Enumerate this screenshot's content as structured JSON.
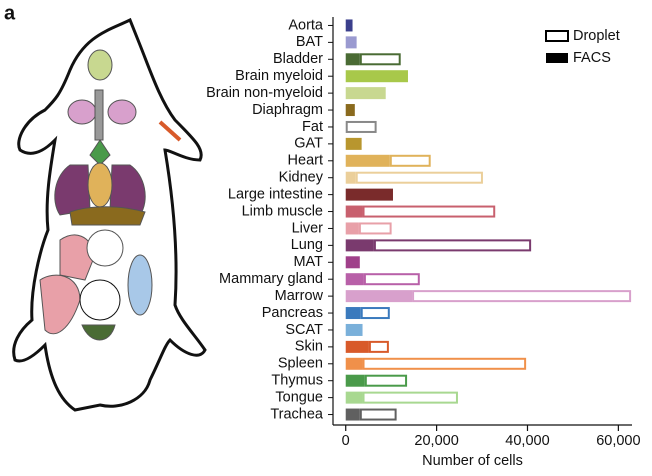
{
  "chart_data": {
    "type": "bar",
    "orientation": "horizontal",
    "stacked": true,
    "panel_label": "a",
    "xlabel": "Number of cells",
    "categories": [
      "Aorta",
      "BAT",
      "Bladder",
      "Brain myeloid",
      "Brain non-myeloid",
      "Diaphragm",
      "Fat",
      "GAT",
      "Heart",
      "Kidney",
      "Large intestine",
      "Limb muscle",
      "Liver",
      "Lung",
      "MAT",
      "Mammary gland",
      "Marrow",
      "Pancreas",
      "SCAT",
      "Skin",
      "Spleen",
      "Thymus",
      "Tongue",
      "Trachea"
    ],
    "colors": [
      "#3b3f8c",
      "#9a9ad0",
      "#4a6b34",
      "#a8c84a",
      "#c8d890",
      "#8a6a1e",
      "#888888",
      "#b8962e",
      "#e0b25a",
      "#ebcf9a",
      "#7a2b2b",
      "#c8606e",
      "#e8a0a8",
      "#7a3a6e",
      "#a0408a",
      "#b860a8",
      "#d8a0cc",
      "#3a7abd",
      "#7ab0da",
      "#d85a2a",
      "#f0904a",
      "#4a9a4a",
      "#a8d890",
      "#606060"
    ],
    "series": [
      {
        "name": "FACS",
        "style": "solid",
        "color": "#000000",
        "values": [
          1500,
          2400,
          3100,
          13700,
          8800,
          2000,
          null,
          3500,
          9700,
          2200,
          10400,
          3700,
          2900,
          6200,
          3100,
          4000,
          14600,
          3300,
          3700,
          5100,
          3700,
          4200,
          3700,
          3100
        ]
      },
      {
        "name": "Droplet",
        "style": "outline",
        "color": "#000000",
        "values": [
          null,
          null,
          9000,
          null,
          null,
          null,
          6800,
          null,
          9000,
          28000,
          null,
          29200,
          7200,
          34600,
          null,
          12300,
          48200,
          6400,
          null,
          4400,
          36000,
          9300,
          21000,
          8100
        ]
      }
    ],
    "xlim": [
      -2800,
      63000
    ],
    "xticks": [
      0,
      {
        "value": 20000,
        "label": "20,000"
      },
      {
        "value": 40000,
        "label": "40,000"
      },
      {
        "value": 60000,
        "label": "60,000"
      }
    ],
    "legend": "upper right"
  }
}
